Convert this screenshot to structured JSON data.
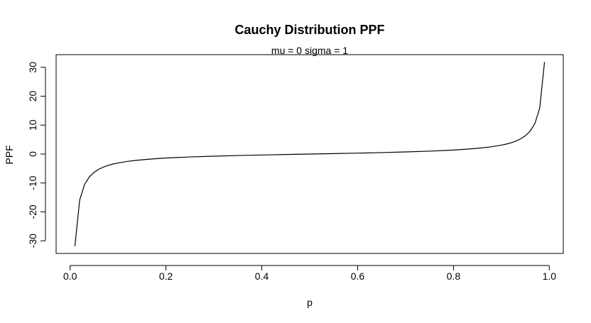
{
  "chart_data": {
    "type": "line",
    "title": "Cauchy Distribution PPF",
    "subtitle": "mu = 0  sigma = 1",
    "xlabel": "p",
    "ylabel": "PPF",
    "xlim": [
      0.01,
      0.99
    ],
    "ylim": [
      -31.82,
      31.82
    ],
    "x_ticks": [
      0.0,
      0.2,
      0.4,
      0.6,
      0.8,
      1.0
    ],
    "x_tick_labels": [
      "0.0",
      "0.2",
      "0.4",
      "0.6",
      "0.8",
      "1.0"
    ],
    "y_ticks": [
      -30,
      -20,
      -10,
      0,
      10,
      20,
      30
    ],
    "y_tick_labels": [
      "-30",
      "-20",
      "-10",
      "0",
      "10",
      "20",
      "30"
    ],
    "grid": false,
    "series": [
      {
        "x": [
          0.01,
          0.02,
          0.03,
          0.04,
          0.05,
          0.06,
          0.07,
          0.08,
          0.09,
          0.1,
          0.12,
          0.14,
          0.16,
          0.18,
          0.2,
          0.25,
          0.3,
          0.35,
          0.4,
          0.45,
          0.5,
          0.55,
          0.6,
          0.65,
          0.7,
          0.75,
          0.8,
          0.82,
          0.84,
          0.86,
          0.88,
          0.9,
          0.91,
          0.92,
          0.93,
          0.94,
          0.95,
          0.96,
          0.97,
          0.98,
          0.99
        ],
        "y": [
          -31.82,
          -15.89,
          -10.58,
          -7.92,
          -6.31,
          -5.24,
          -4.47,
          -3.89,
          -3.44,
          -3.08,
          -2.53,
          -2.14,
          -1.84,
          -1.6,
          -1.38,
          -1.0,
          -0.73,
          -0.51,
          -0.32,
          -0.16,
          0.0,
          0.16,
          0.32,
          0.51,
          0.73,
          1.0,
          1.38,
          1.6,
          1.84,
          2.14,
          2.53,
          3.08,
          3.44,
          3.89,
          4.47,
          5.24,
          6.31,
          7.92,
          10.58,
          15.89,
          31.82
        ]
      }
    ]
  }
}
